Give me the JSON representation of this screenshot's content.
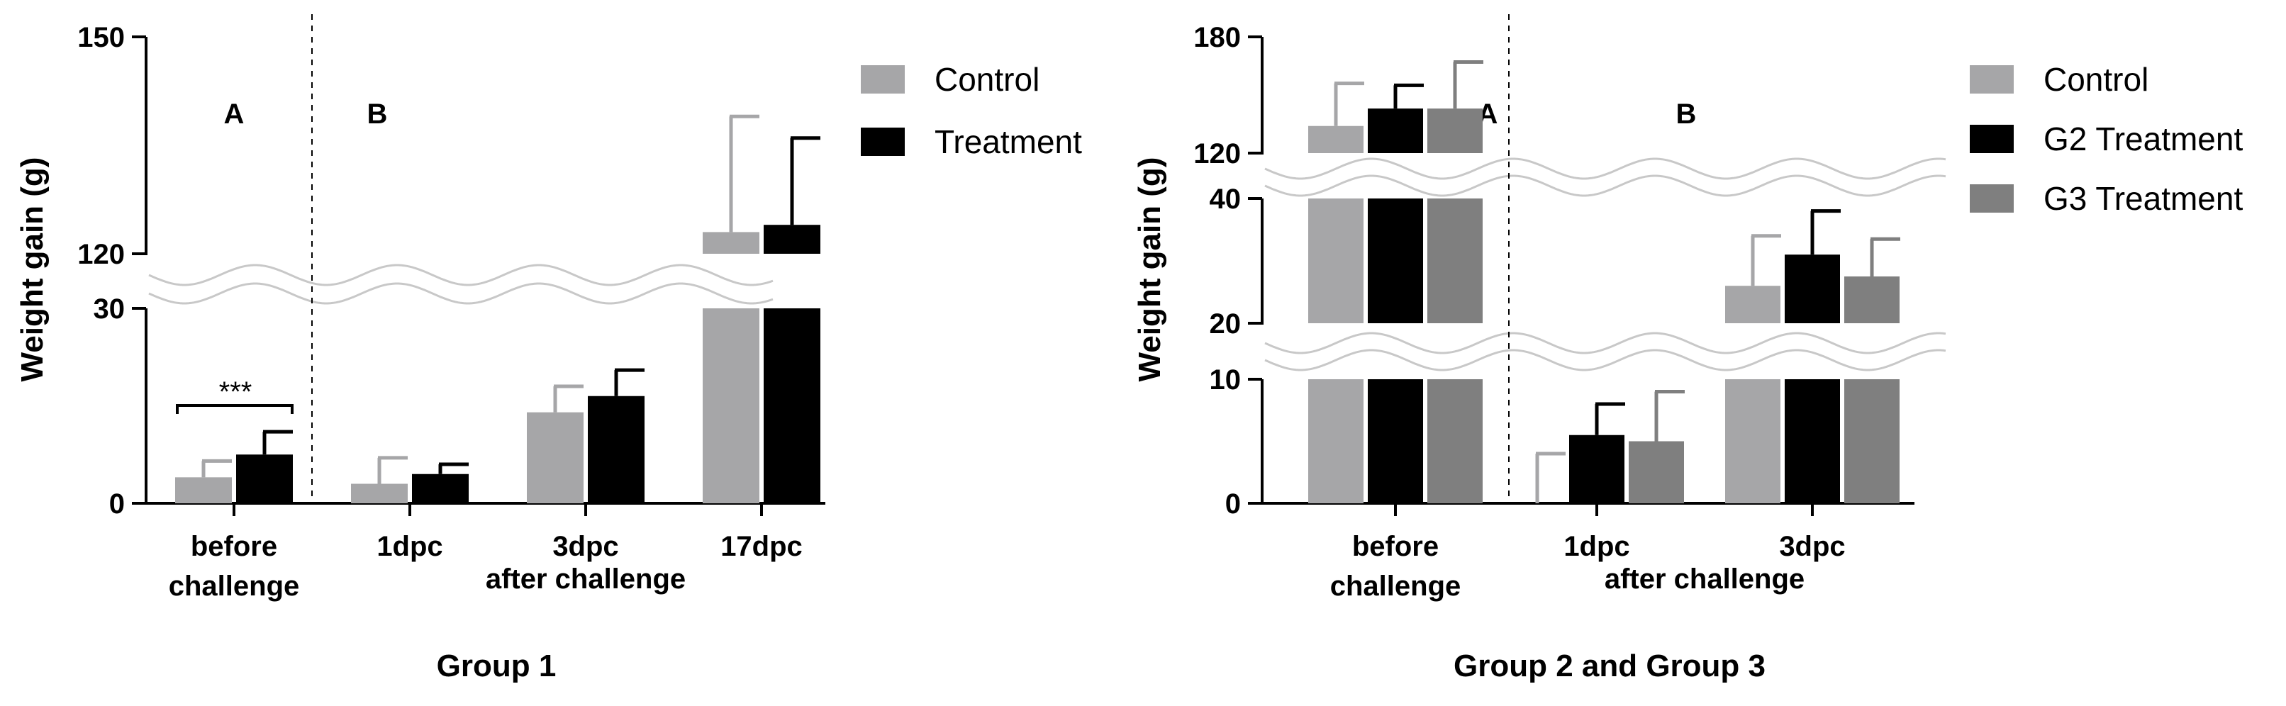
{
  "chart_data": [
    {
      "type": "bar",
      "title": "Group 1",
      "ylabel": "Weight gain (g)",
      "y_axis_break": {
        "lower_range": [
          0,
          30
        ],
        "upper_range": [
          120,
          150
        ]
      },
      "yticks": [
        "0",
        "30",
        "120",
        "150"
      ],
      "categories": [
        "before challenge",
        "1dpc",
        "3dpc",
        "17dpc"
      ],
      "category_labels": [
        {
          "line1": "before",
          "line2": "challenge"
        },
        {
          "line1": "1dpc",
          "line2": ""
        },
        {
          "line1": "3dpc",
          "line2": ""
        },
        {
          "line1": "17dpc",
          "line2": ""
        }
      ],
      "group_label": "after challenge",
      "section_labels": [
        "A",
        "B"
      ],
      "significance": "***",
      "series": [
        {
          "name": "Control",
          "color": "#a6a6a8",
          "values": [
            4,
            3,
            14,
            123
          ],
          "errors": [
            2.5,
            4,
            4,
            16
          ]
        },
        {
          "name": "Treatment",
          "color": "#000000",
          "values": [
            7.5,
            4.5,
            16.5,
            124
          ],
          "errors": [
            3.5,
            1.5,
            4,
            12
          ]
        }
      ],
      "legend": {
        "position": "right",
        "entries": [
          "Control",
          "Treatment"
        ]
      }
    },
    {
      "type": "bar",
      "title": "Group 2 and Group 3",
      "ylabel": "Weight gain (g)",
      "y_axis_break": {
        "segments": [
          [
            0,
            10
          ],
          [
            20,
            40
          ],
          [
            120,
            180
          ]
        ]
      },
      "yticks": [
        "0",
        "10",
        "20",
        "40",
        "120",
        "180"
      ],
      "categories": [
        "before challenge",
        "1dpc",
        "3dpc"
      ],
      "category_labels": [
        {
          "line1": "before",
          "line2": "challenge"
        },
        {
          "line1": "1dpc",
          "line2": ""
        },
        {
          "line1": "3dpc",
          "line2": ""
        }
      ],
      "group_label": "after challenge",
      "section_labels": [
        "A",
        "B"
      ],
      "series": [
        {
          "name": "Control",
          "color": "#a6a6a8",
          "values": [
            134,
            0,
            26
          ],
          "errors": [
            22,
            4,
            8
          ]
        },
        {
          "name": "G2 Treatment",
          "color": "#000000",
          "values": [
            143,
            5.5,
            31
          ],
          "errors": [
            12,
            2.5,
            7
          ]
        },
        {
          "name": "G3 Treatment",
          "color": "#7f7f7f",
          "values": [
            143,
            5,
            27.5
          ],
          "errors": [
            24,
            4,
            6
          ]
        }
      ],
      "legend": {
        "position": "right",
        "entries": [
          "Control",
          "G2 Treatment",
          "G3 Treatment"
        ]
      }
    }
  ]
}
